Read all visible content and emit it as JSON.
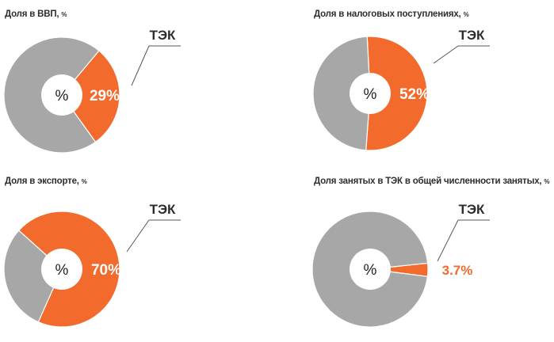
{
  "chart_data": [
    {
      "type": "pie",
      "title": "Доля в ВВП,",
      "unit": "%",
      "center_label": "%",
      "slice_label": "29%",
      "callout_label": "ТЭК",
      "slices": [
        {
          "name": "ТЭК",
          "value": 29,
          "color": "#f26a2c"
        },
        {
          "name": "",
          "value": 71,
          "color": "#a7a7a7"
        }
      ],
      "start_angle_deg": 40
    },
    {
      "type": "pie",
      "title": "Доля в налоговых поступлениях,",
      "unit": "%",
      "center_label": "%",
      "slice_label": "52%",
      "callout_label": "ТЭК",
      "slices": [
        {
          "name": "ТЭК",
          "value": 52,
          "color": "#f26a2c"
        },
        {
          "name": "",
          "value": 48,
          "color": "#a7a7a7"
        }
      ],
      "start_angle_deg": -3
    },
    {
      "type": "pie",
      "title": "Доля в экспорте,",
      "unit": "%",
      "center_label": "%",
      "slice_label": "70%",
      "callout_label": "ТЭК",
      "slices": [
        {
          "name": "ТЭК",
          "value": 70,
          "color": "#f26a2c"
        },
        {
          "name": "",
          "value": 30,
          "color": "#a7a7a7"
        }
      ],
      "start_angle_deg": -48
    },
    {
      "type": "pie",
      "title": "Доля занятых в ТЭК в общей численности занятых,",
      "unit": "%",
      "center_label": "%",
      "slice_label": "3.7%",
      "callout_label": "ТЭК",
      "slices": [
        {
          "name": "ТЭК",
          "value": 3.7,
          "color": "#f26a2c"
        },
        {
          "name": "",
          "value": 96.3,
          "color": "#a7a7a7"
        }
      ],
      "start_angle_deg": 84
    }
  ]
}
